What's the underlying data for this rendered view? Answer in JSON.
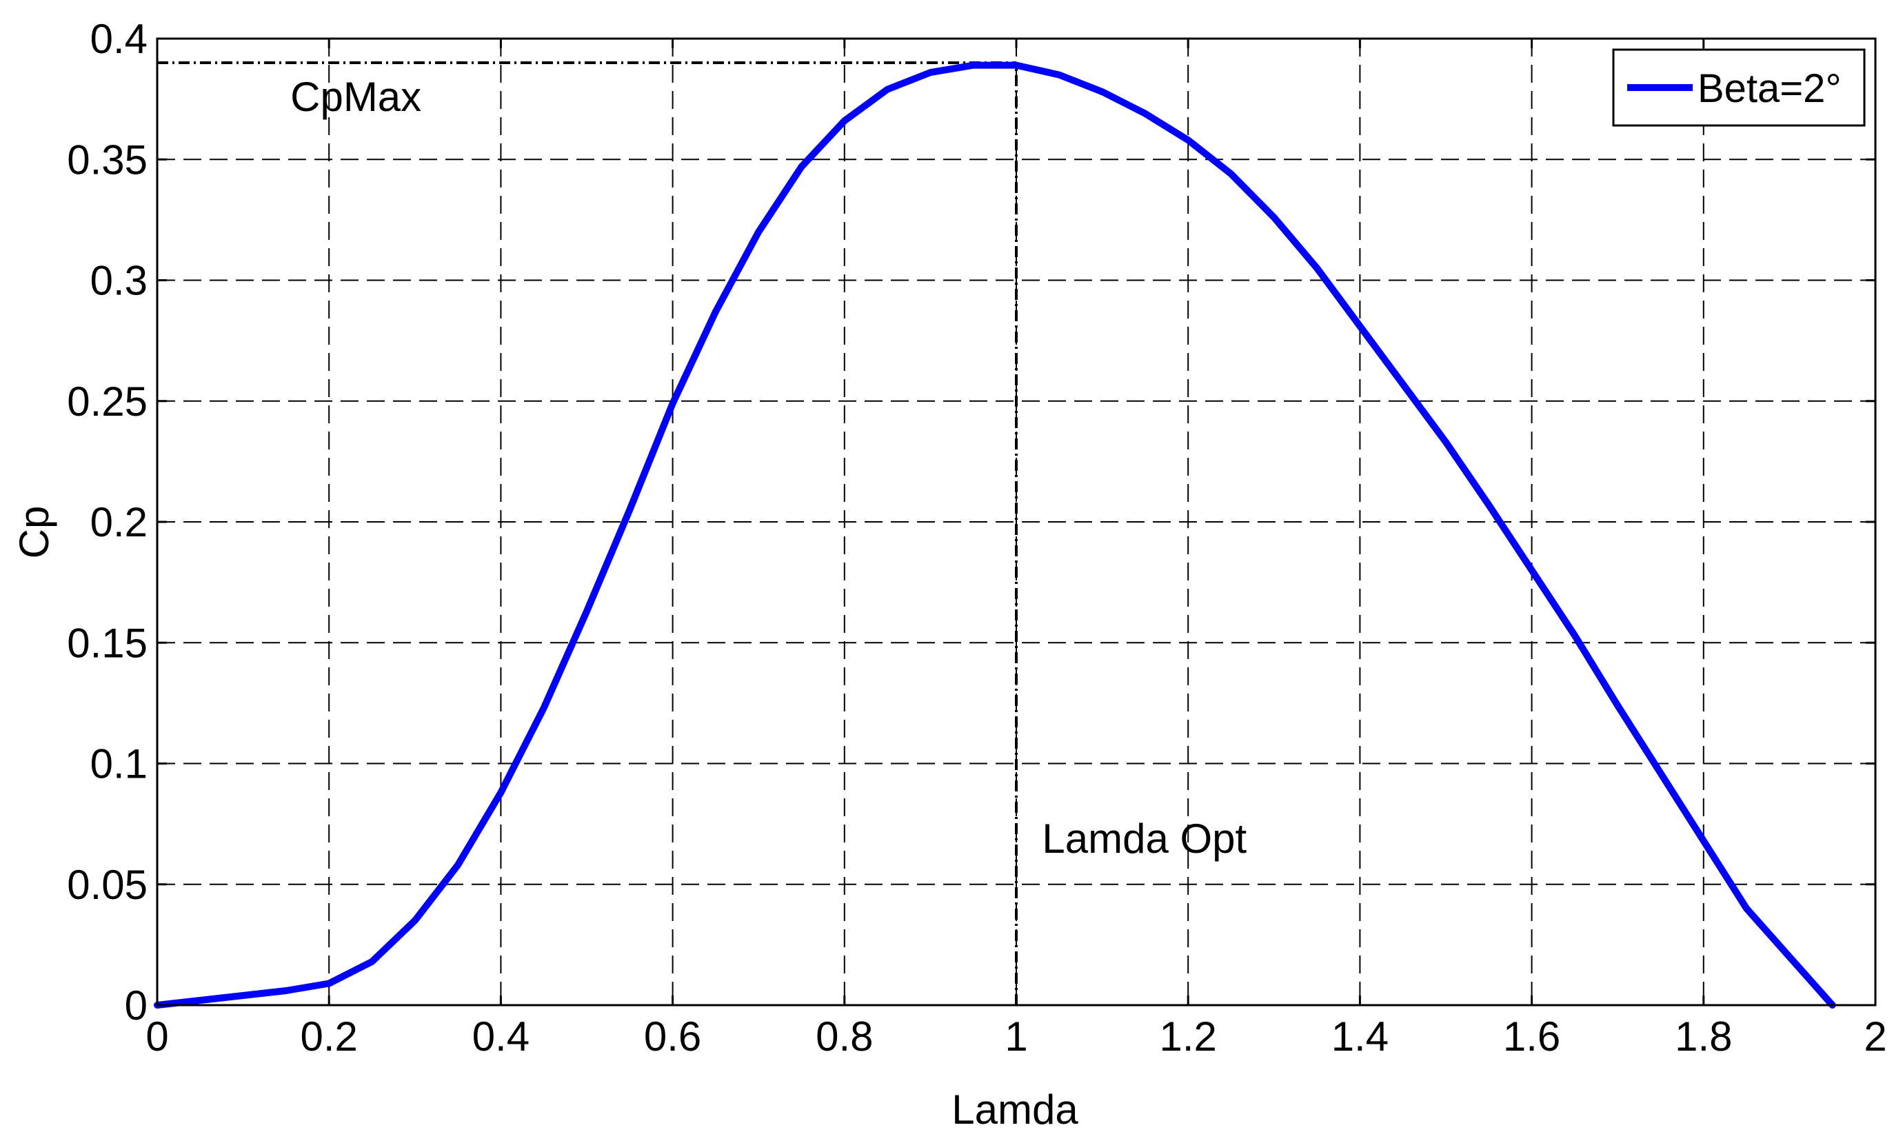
{
  "chart_data": {
    "type": "line",
    "xlabel": "Lamda",
    "ylabel": "Cp",
    "xlim": [
      0,
      2
    ],
    "ylim": [
      0,
      0.4
    ],
    "xticks": [
      0,
      0.2,
      0.4,
      0.6,
      0.8,
      1,
      1.2,
      1.4,
      1.6,
      1.8,
      2
    ],
    "xtick_labels": [
      "0",
      "0.2",
      "0.4",
      "0.6",
      "0.8",
      "1",
      "1.2",
      "1.4",
      "1.6",
      "1.8",
      "2"
    ],
    "yticks": [
      0,
      0.05,
      0.1,
      0.15,
      0.2,
      0.25,
      0.3,
      0.35,
      0.4
    ],
    "ytick_labels": [
      "0",
      "0.05",
      "0.1",
      "0.15",
      "0.2",
      "0.25",
      "0.3",
      "0.35",
      "0.4"
    ],
    "grid": true,
    "legend_position": "top-right",
    "series": [
      {
        "name": "Beta=2°",
        "color": "#0000ff",
        "x": [
          0,
          0.05,
          0.1,
          0.15,
          0.2,
          0.25,
          0.3,
          0.35,
          0.4,
          0.45,
          0.5,
          0.55,
          0.6,
          0.65,
          0.7,
          0.75,
          0.8,
          0.85,
          0.9,
          0.95,
          1.0,
          1.05,
          1.1,
          1.15,
          1.2,
          1.25,
          1.3,
          1.35,
          1.4,
          1.45,
          1.5,
          1.55,
          1.6,
          1.65,
          1.7,
          1.75,
          1.8,
          1.85,
          1.9,
          1.95
        ],
        "y": [
          0.0,
          0.002,
          0.004,
          0.006,
          0.009,
          0.018,
          0.035,
          0.058,
          0.088,
          0.123,
          0.163,
          0.205,
          0.249,
          0.287,
          0.32,
          0.347,
          0.366,
          0.379,
          0.386,
          0.389,
          0.389,
          0.385,
          0.378,
          0.369,
          0.358,
          0.344,
          0.326,
          0.305,
          0.281,
          0.257,
          0.233,
          0.207,
          0.18,
          0.153,
          0.124,
          0.096,
          0.068,
          0.04,
          0.02,
          0.0
        ]
      }
    ],
    "reference_lines": [
      {
        "orientation": "horizontal",
        "value": 0.39,
        "from": 0,
        "to": 1
      },
      {
        "orientation": "vertical",
        "value": 1,
        "from": 0,
        "to": 0.39
      }
    ],
    "annotations": [
      {
        "text": "CpMax",
        "x": 0.155,
        "y": 0.37
      },
      {
        "text": "Lamda Opt",
        "x": 1.03,
        "y": 0.063
      }
    ]
  }
}
